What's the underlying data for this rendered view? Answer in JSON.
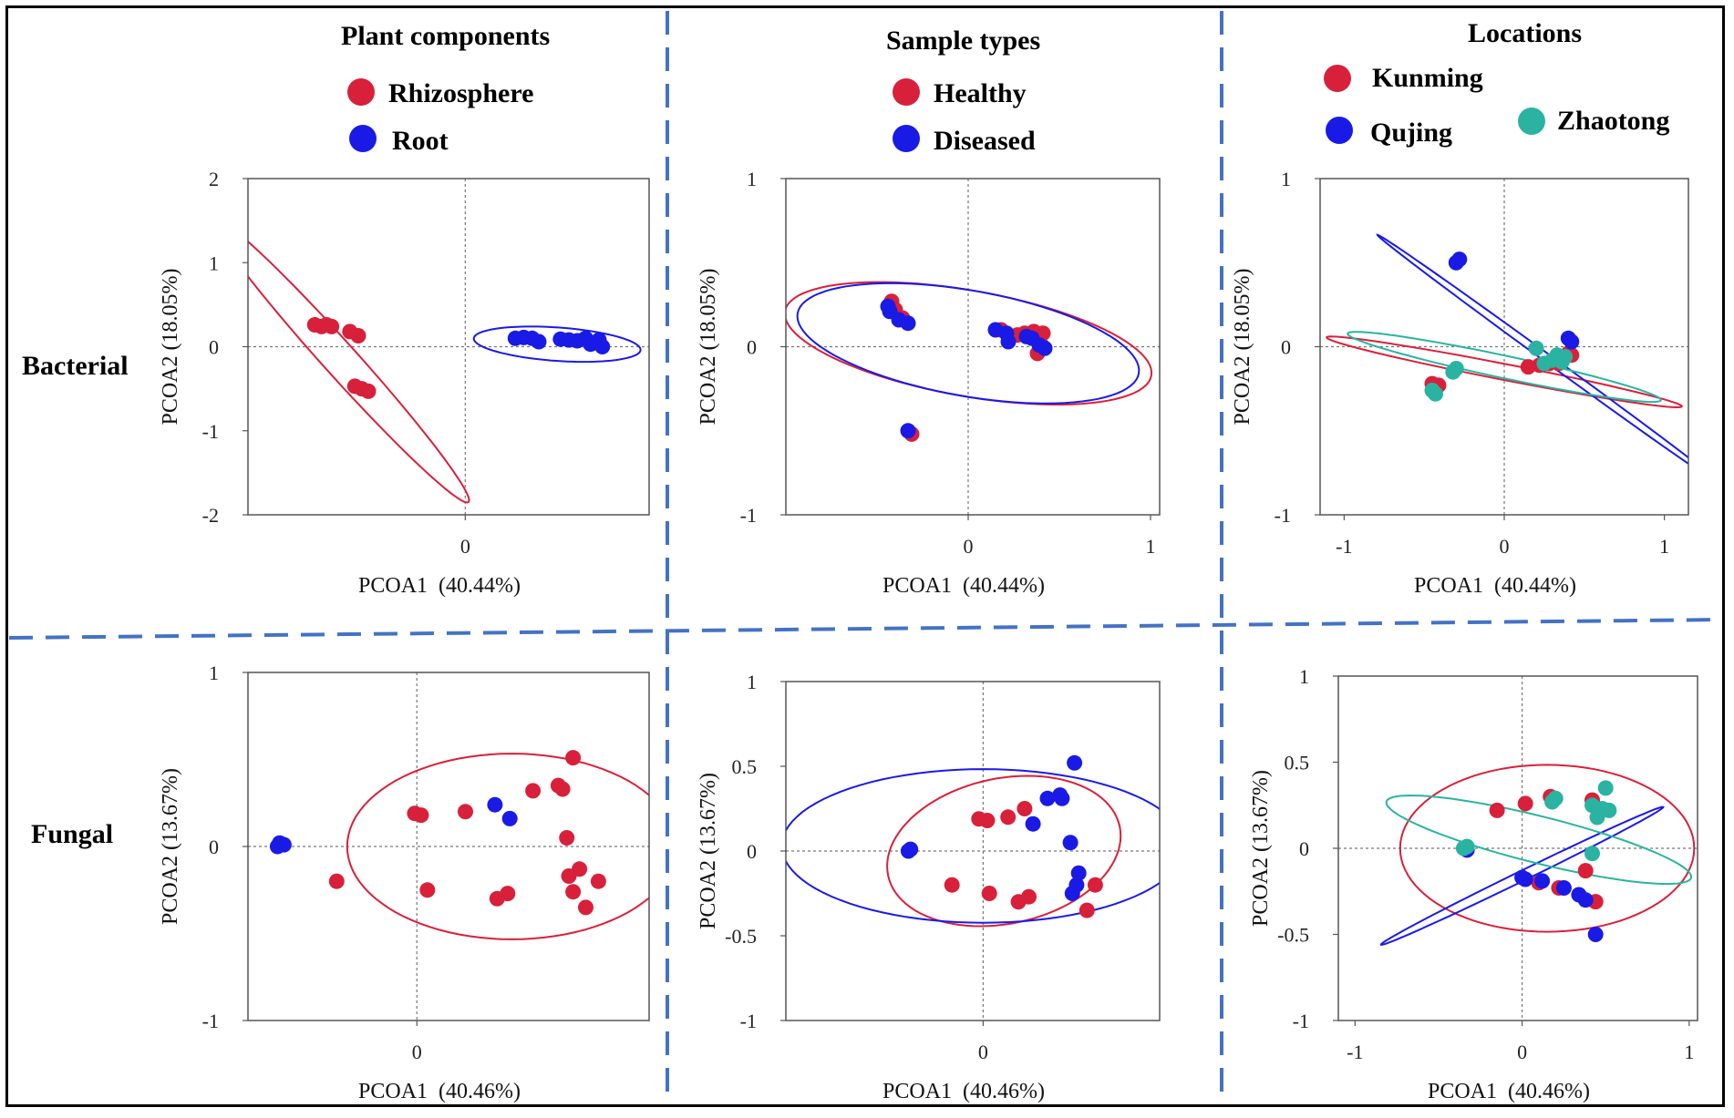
{
  "row_labels": [
    "Bacterial",
    "Fungal"
  ],
  "legends": [
    {
      "title": "Plant components",
      "entries": [
        {
          "name": "Rhizosphere",
          "color": "#d8203a"
        },
        {
          "name": "Root",
          "color": "#1a1ae6"
        }
      ]
    },
    {
      "title": "Sample types",
      "entries": [
        {
          "name": "Healthy",
          "color": "#d8203a"
        },
        {
          "name": "Diseased",
          "color": "#1a1ae6"
        }
      ]
    },
    {
      "title": "Locations",
      "entries": [
        {
          "name": "Kunming",
          "color": "#d8203a"
        },
        {
          "name": "Qujing",
          "color": "#1a1ae6"
        },
        {
          "name": "Zhaotong",
          "color": "#2ab3a0"
        }
      ]
    }
  ],
  "chart_data": [
    {
      "id": "bacterial-plant-components",
      "type": "scatter",
      "group": "Plant components",
      "row": "Bacterial",
      "xlabel": "PCOA1  (40.44%)",
      "ylabel": "PCOA2 (18.05%)",
      "xlim": [
        -1.3,
        1.1
      ],
      "ylim": [
        -2,
        2
      ],
      "xticks": [
        {
          "v": 0,
          "label": "0"
        }
      ],
      "yticks": [
        {
          "v": -2,
          "label": "-2"
        },
        {
          "v": -1,
          "label": "-1"
        },
        {
          "v": 0,
          "label": "0"
        },
        {
          "v": 1,
          "label": "1"
        },
        {
          "v": 2,
          "label": "2"
        }
      ],
      "series": [
        {
          "name": "Rhizosphere",
          "color": "#d8203a",
          "points": [
            [
              -0.9,
              0.26
            ],
            [
              -0.86,
              0.24
            ],
            [
              -0.83,
              0.26
            ],
            [
              -0.8,
              0.24
            ],
            [
              -0.69,
              0.18
            ],
            [
              -0.64,
              0.13
            ],
            [
              -0.66,
              -0.47
            ],
            [
              -0.62,
              -0.5
            ],
            [
              -0.58,
              -0.53
            ]
          ],
          "ellipse": {
            "cx": -0.75,
            "cy": -0.15,
            "rx": 1.15,
            "ry": 0.1,
            "angle": -48
          }
        },
        {
          "name": "Root",
          "color": "#1a1ae6",
          "points": [
            [
              0.3,
              0.1
            ],
            [
              0.35,
              0.11
            ],
            [
              0.4,
              0.1
            ],
            [
              0.44,
              0.06
            ],
            [
              0.57,
              0.09
            ],
            [
              0.62,
              0.08
            ],
            [
              0.67,
              0.07
            ],
            [
              0.72,
              0.1
            ],
            [
              0.75,
              0.03
            ],
            [
              0.78,
              0.05
            ],
            [
              0.8,
              0.08
            ],
            [
              0.82,
              0.0
            ]
          ],
          "ellipse": {
            "cx": 0.55,
            "cy": 0.03,
            "rx": 0.5,
            "ry": 0.1,
            "angle": -4
          }
        }
      ]
    },
    {
      "id": "bacterial-sample-types",
      "type": "scatter",
      "group": "Sample types",
      "row": "Bacterial",
      "xlabel": "PCOA1  (40.44%)",
      "ylabel": "PCOA2 (18.05%)",
      "xlim": [
        -1,
        1.05
      ],
      "ylim": [
        -1,
        1
      ],
      "xticks": [
        {
          "v": 0,
          "label": "0"
        },
        {
          "v": 1,
          "label": "1"
        }
      ],
      "yticks": [
        {
          "v": -1,
          "label": "-1"
        },
        {
          "v": 0,
          "label": "0"
        },
        {
          "v": 1,
          "label": "1"
        }
      ],
      "series": [
        {
          "name": "Healthy",
          "color": "#d8203a",
          "points": [
            [
              -0.42,
              0.27
            ],
            [
              -0.4,
              0.22
            ],
            [
              -0.36,
              0.17
            ],
            [
              -0.31,
              -0.52
            ],
            [
              0.18,
              0.1
            ],
            [
              0.27,
              0.07
            ],
            [
              0.31,
              0.08
            ],
            [
              0.36,
              0.09
            ],
            [
              0.41,
              0.08
            ],
            [
              0.39,
              0.03
            ],
            [
              0.38,
              -0.04
            ],
            [
              0.41,
              0.0
            ]
          ],
          "ellipse": {
            "cx": 0.0,
            "cy": 0.02,
            "rx": 1.02,
            "ry": 0.29,
            "angle": -10
          }
        },
        {
          "name": "Diseased",
          "color": "#1a1ae6",
          "points": [
            [
              -0.44,
              0.24
            ],
            [
              -0.43,
              0.21
            ],
            [
              -0.38,
              0.16
            ],
            [
              -0.33,
              0.14
            ],
            [
              -0.33,
              -0.5
            ],
            [
              0.15,
              0.1
            ],
            [
              0.21,
              0.08
            ],
            [
              0.22,
              0.03
            ],
            [
              0.32,
              0.06
            ],
            [
              0.35,
              0.05
            ],
            [
              0.39,
              0.01
            ],
            [
              0.42,
              -0.01
            ]
          ],
          "ellipse": {
            "cx": 0.0,
            "cy": 0.02,
            "rx": 0.95,
            "ry": 0.29,
            "angle": -10
          }
        }
      ]
    },
    {
      "id": "bacterial-locations",
      "type": "scatter",
      "group": "Locations",
      "row": "Bacterial",
      "xlabel": "PCOA1  (40.44%)",
      "ylabel": "PCOA2 (18.05%)",
      "xlim": [
        -1.15,
        1.15
      ],
      "ylim": [
        -1,
        1
      ],
      "xticks": [
        {
          "v": -1,
          "label": "-1"
        },
        {
          "v": 0,
          "label": "0"
        },
        {
          "v": 1,
          "label": "1"
        }
      ],
      "yticks": [
        {
          "v": -1,
          "label": "-1"
        },
        {
          "v": 0,
          "label": "0"
        },
        {
          "v": 1,
          "label": "1"
        }
      ],
      "series": [
        {
          "name": "Kunming",
          "color": "#d8203a",
          "points": [
            [
              -0.45,
              -0.22
            ],
            [
              -0.43,
              -0.24
            ],
            [
              -0.41,
              -0.23
            ],
            [
              0.15,
              -0.12
            ],
            [
              0.22,
              -0.11
            ],
            [
              0.28,
              -0.1
            ],
            [
              0.33,
              -0.08
            ],
            [
              0.38,
              -0.06
            ],
            [
              0.4,
              -0.04
            ],
            [
              0.42,
              -0.05
            ],
            [
              0.34,
              -0.1
            ]
          ],
          "ellipse": {
            "cx": 0.0,
            "cy": -0.15,
            "rx": 1.13,
            "ry": 0.05,
            "angle": -11
          }
        },
        {
          "name": "Qujing",
          "color": "#1a1ae6",
          "points": [
            [
              -0.3,
              0.5
            ],
            [
              -0.28,
              0.52
            ],
            [
              0.4,
              0.05
            ],
            [
              0.42,
              0.03
            ]
          ],
          "ellipse": {
            "cx": 0.3,
            "cy": -0.09,
            "rx": 1.35,
            "ry": 0.025,
            "angle": -36
          }
        },
        {
          "name": "Zhaotong",
          "color": "#2ab3a0",
          "points": [
            [
              -0.45,
              -0.26
            ],
            [
              -0.43,
              -0.28
            ],
            [
              -0.32,
              -0.15
            ],
            [
              -0.3,
              -0.13
            ],
            [
              0.2,
              -0.01
            ],
            [
              0.25,
              -0.1
            ],
            [
              0.3,
              -0.08
            ],
            [
              0.33,
              -0.05
            ],
            [
              0.36,
              -0.09
            ],
            [
              0.38,
              -0.06
            ]
          ],
          "ellipse": {
            "cx": 0.0,
            "cy": -0.12,
            "rx": 1.0,
            "ry": 0.07,
            "angle": -12
          }
        }
      ]
    },
    {
      "id": "fungal-plant-components",
      "type": "scatter",
      "group": "Plant components",
      "row": "Fungal",
      "xlabel": "PCOA1  (40.46%)",
      "ylabel": "PCOA2 (13.67%)",
      "xlim": [
        -0.8,
        1.1
      ],
      "ylim": [
        -1,
        1
      ],
      "xticks": [
        {
          "v": 0,
          "label": "0"
        }
      ],
      "yticks": [
        {
          "v": -1,
          "label": "-1"
        },
        {
          "v": 0,
          "label": "0"
        },
        {
          "v": 1,
          "label": "1"
        }
      ],
      "series": [
        {
          "name": "Rhizosphere",
          "color": "#d8203a",
          "points": [
            [
              -0.38,
              -0.2
            ],
            [
              -0.01,
              0.19
            ],
            [
              0.02,
              0.18
            ],
            [
              0.05,
              -0.25
            ],
            [
              0.23,
              0.2
            ],
            [
              0.38,
              -0.3
            ],
            [
              0.43,
              -0.27
            ],
            [
              0.55,
              0.32
            ],
            [
              0.67,
              0.35
            ],
            [
              0.69,
              0.33
            ],
            [
              0.71,
              0.05
            ],
            [
              0.74,
              0.51
            ],
            [
              0.72,
              -0.17
            ],
            [
              0.74,
              -0.26
            ],
            [
              0.77,
              -0.13
            ],
            [
              0.8,
              -0.35
            ],
            [
              0.86,
              -0.2
            ]
          ],
          "ellipse": {
            "cx": 0.45,
            "cy": 0.0,
            "rx": 0.78,
            "ry": 0.44,
            "angle": 0
          }
        },
        {
          "name": "Root",
          "color": "#1a1ae6",
          "points": [
            [
              -0.66,
              0.0
            ],
            [
              -0.65,
              0.02
            ],
            [
              -0.63,
              0.01
            ],
            [
              0.37,
              0.24
            ],
            [
              0.44,
              0.16
            ]
          ],
          "ellipse": null
        }
      ]
    },
    {
      "id": "fungal-sample-types",
      "type": "scatter",
      "group": "Sample types",
      "row": "Fungal",
      "xlabel": "PCOA1  (40.46%)",
      "ylabel": "PCOA2 (13.67%)",
      "xlim": [
        -0.95,
        0.85
      ],
      "ylim": [
        -1,
        1
      ],
      "xticks": [
        {
          "v": 0,
          "label": "0"
        }
      ],
      "yticks": [
        {
          "v": -1,
          "label": "-1"
        },
        {
          "v": -0.5,
          "label": "-0.5"
        },
        {
          "v": 0,
          "label": "0"
        },
        {
          "v": 0.5,
          "label": "0.5"
        },
        {
          "v": 1,
          "label": "1"
        }
      ],
      "series": [
        {
          "name": "Healthy",
          "color": "#d8203a",
          "points": [
            [
              -0.15,
              -0.2
            ],
            [
              -0.02,
              0.19
            ],
            [
              0.02,
              0.18
            ],
            [
              0.03,
              -0.25
            ],
            [
              0.12,
              0.2
            ],
            [
              0.2,
              0.25
            ],
            [
              0.17,
              -0.3
            ],
            [
              0.22,
              -0.27
            ],
            [
              0.5,
              -0.35
            ],
            [
              0.54,
              -0.2
            ]
          ],
          "ellipse": {
            "cx": 0.1,
            "cy": 0.0,
            "rx": 0.57,
            "ry": 0.35,
            "angle": 12
          }
        },
        {
          "name": "Diseased",
          "color": "#1a1ae6",
          "points": [
            [
              -0.36,
              0.0
            ],
            [
              -0.35,
              0.01
            ],
            [
              0.24,
              0.16
            ],
            [
              0.31,
              0.31
            ],
            [
              0.37,
              0.33
            ],
            [
              0.38,
              0.31
            ],
            [
              0.44,
              0.52
            ],
            [
              0.42,
              0.05
            ],
            [
              0.46,
              -0.13
            ],
            [
              0.45,
              -0.2
            ],
            [
              0.43,
              -0.25
            ]
          ],
          "ellipse": {
            "cx": 0.0,
            "cy": 0.03,
            "rx": 0.97,
            "ry": 0.37,
            "angle": 0
          }
        }
      ]
    },
    {
      "id": "fungal-locations",
      "type": "scatter",
      "group": "Locations",
      "row": "Fungal",
      "xlabel": "PCOA1  (40.46%)",
      "ylabel": "PCOA2 (13.67%)",
      "xlim": [
        -1.1,
        1.05
      ],
      "ylim": [
        -1,
        1
      ],
      "xticks": [
        {
          "v": -1,
          "label": "-1"
        },
        {
          "v": 0,
          "label": "0"
        },
        {
          "v": 1,
          "label": "1"
        }
      ],
      "yticks": [
        {
          "v": -1,
          "label": "-1"
        },
        {
          "v": -0.5,
          "label": "-0.5"
        },
        {
          "v": 0,
          "label": "0"
        },
        {
          "v": 0.5,
          "label": "0.5"
        },
        {
          "v": 1,
          "label": "1"
        }
      ],
      "series": [
        {
          "name": "Kunming",
          "color": "#d8203a",
          "points": [
            [
              -0.15,
              0.22
            ],
            [
              0.02,
              0.26
            ],
            [
              0.1,
              -0.2
            ],
            [
              0.17,
              0.3
            ],
            [
              0.22,
              -0.23
            ],
            [
              0.38,
              -0.13
            ],
            [
              0.42,
              0.28
            ],
            [
              0.44,
              -0.31
            ]
          ],
          "ellipse": {
            "cx": 0.15,
            "cy": 0.0,
            "rx": 0.88,
            "ry": 0.5,
            "angle": 0
          }
        },
        {
          "name": "Qujing",
          "color": "#1a1ae6",
          "points": [
            [
              -0.33,
              -0.01
            ],
            [
              0.0,
              -0.17
            ],
            [
              0.02,
              -0.18
            ],
            [
              0.12,
              -0.19
            ],
            [
              0.25,
              -0.23
            ],
            [
              0.34,
              -0.27
            ],
            [
              0.38,
              -0.3
            ],
            [
              0.44,
              -0.5
            ]
          ],
          "ellipse": {
            "cx": 0.0,
            "cy": -0.16,
            "rx": 0.94,
            "ry": 0.03,
            "angle": 26
          }
        },
        {
          "name": "Zhaotong",
          "color": "#2ab3a0",
          "points": [
            [
              -0.35,
              0.0
            ],
            [
              -0.33,
              0.01
            ],
            [
              0.2,
              0.29
            ],
            [
              0.18,
              0.27
            ],
            [
              0.42,
              0.25
            ],
            [
              0.45,
              0.18
            ],
            [
              0.48,
              0.23
            ],
            [
              0.5,
              0.35
            ],
            [
              0.52,
              0.22
            ],
            [
              0.42,
              -0.03
            ]
          ],
          "ellipse": {
            "cx": 0.1,
            "cy": 0.05,
            "rx": 0.94,
            "ry": 0.14,
            "angle": -14
          }
        }
      ]
    }
  ]
}
